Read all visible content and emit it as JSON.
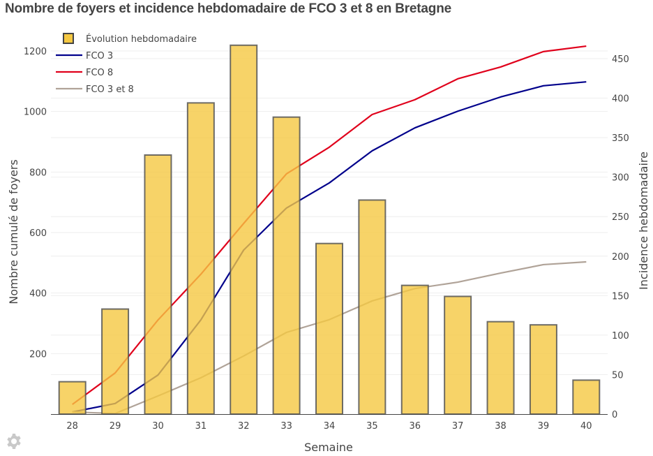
{
  "chart_data": {
    "type": "bar+line",
    "title": "Nombre de foyers et incidence hebdomadaire de FCO 3 et 8 en Bretagne",
    "xlabel": "Semaine",
    "ylabel": "Nombre cumulé de foyers",
    "y2label": "Incidence hebdomadaire",
    "categories": [
      "28",
      "29",
      "30",
      "31",
      "32",
      "33",
      "34",
      "35",
      "36",
      "37",
      "38",
      "39",
      "40"
    ],
    "ylim": [
      0,
      1250
    ],
    "y2lim": [
      0,
      475
    ],
    "yticks": [
      200,
      400,
      600,
      800,
      1000,
      1200
    ],
    "y2ticks": [
      0,
      50,
      100,
      150,
      200,
      250,
      300,
      350,
      400,
      450
    ],
    "grid": true,
    "legend_position": "top-left",
    "bars": {
      "name": "Évolution hebdomadaire",
      "axis": "right",
      "color": "#f5c842",
      "edge_color": "#555555",
      "values": [
        41,
        133,
        328,
        394,
        467,
        376,
        216,
        271,
        163,
        149,
        117,
        113,
        43
      ]
    },
    "series": [
      {
        "name": "FCO 3",
        "axis": "left",
        "color": "#00008b",
        "values": [
          7,
          35,
          129,
          311,
          542,
          681,
          764,
          870,
          946,
          1001,
          1048,
          1085,
          1098
        ]
      },
      {
        "name": "FCO 8",
        "axis": "left",
        "color": "#e0001b",
        "values": [
          32,
          136,
          311,
          462,
          630,
          794,
          882,
          990,
          1039,
          1108,
          1147,
          1198,
          1216
        ]
      },
      {
        "name": "FCO 3 et 8",
        "axis": "left",
        "color": "#b0a398",
        "values": [
          7,
          2,
          60,
          120,
          192,
          270,
          312,
          374,
          415,
          436,
          466,
          494,
          503
        ]
      }
    ]
  },
  "ui": {
    "settings_icon": "gear-icon"
  }
}
